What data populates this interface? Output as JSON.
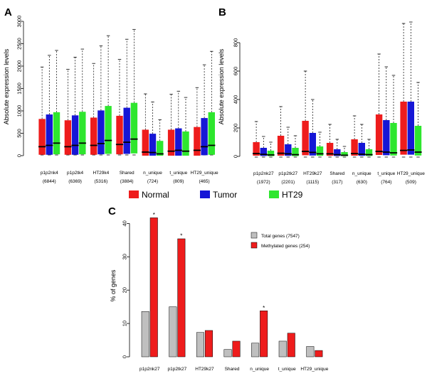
{
  "colors": {
    "normal": "#ee1c1c",
    "tumor": "#1616d6",
    "ht29": "#2ee62e",
    "total": "#bfbfbf",
    "methylated": "#ee1c1c",
    "median": "#000000",
    "whisker": "#000000"
  },
  "legend": {
    "normal": "Normal",
    "tumor": "Tumor",
    "ht29": "HT29"
  },
  "chart_data": [
    {
      "panel": "A",
      "type": "box",
      "ylabel": "Absolute expression levels",
      "ylim": [
        0,
        3000
      ],
      "yticks": [
        0,
        500,
        1000,
        1500,
        2000,
        2500,
        3000
      ],
      "series": [
        "Normal",
        "Tumor",
        "HT29"
      ],
      "categories": [
        {
          "name": "p1p2nk4",
          "count": "(6844)",
          "boxes": [
            {
              "q1": 20,
              "med": 200,
              "q3": 820,
              "hi": 1980
            },
            {
              "q1": 20,
              "med": 230,
              "q3": 920,
              "hi": 2240
            },
            {
              "q1": 30,
              "med": 280,
              "q3": 970,
              "hi": 2350
            }
          ]
        },
        {
          "name": "p1p2tk4",
          "count": "(6369)",
          "boxes": [
            {
              "q1": 20,
              "med": 200,
              "q3": 790,
              "hi": 1930
            },
            {
              "q1": 20,
              "med": 230,
              "q3": 900,
              "hi": 2200
            },
            {
              "q1": 30,
              "med": 280,
              "q3": 980,
              "hi": 2380
            }
          ]
        },
        {
          "name": "HT29k4",
          "count": "(5316)",
          "boxes": [
            {
              "q1": 20,
              "med": 230,
              "q3": 850,
              "hi": 2060
            },
            {
              "q1": 30,
              "med": 270,
              "q3": 1010,
              "hi": 2450
            },
            {
              "q1": 40,
              "med": 340,
              "q3": 1110,
              "hi": 2680
            }
          ]
        },
        {
          "name": "Shared",
          "count": "(3884)",
          "boxes": [
            {
              "q1": 30,
              "med": 250,
              "q3": 890,
              "hi": 2150
            },
            {
              "q1": 40,
              "med": 300,
              "q3": 1070,
              "hi": 2600
            },
            {
              "q1": 50,
              "med": 370,
              "q3": 1180,
              "hi": 2820
            }
          ]
        },
        {
          "name": "n_unique",
          "count": "(724)",
          "boxes": [
            {
              "q1": 0,
              "med": 80,
              "q3": 580,
              "hi": 1380
            },
            {
              "q1": 0,
              "med": 70,
              "q3": 490,
              "hi": 1200
            },
            {
              "q1": 0,
              "med": 40,
              "q3": 330,
              "hi": 800
            }
          ]
        },
        {
          "name": "t_unique",
          "count": "(809)",
          "boxes": [
            {
              "q1": 0,
              "med": 100,
              "q3": 580,
              "hi": 1370
            },
            {
              "q1": 0,
              "med": 120,
              "q3": 610,
              "hi": 1440
            },
            {
              "q1": 0,
              "med": 100,
              "q3": 540,
              "hi": 1300
            }
          ]
        },
        {
          "name": "HT29_unique",
          "count": "(465)",
          "boxes": [
            {
              "q1": 0,
              "med": 120,
              "q3": 640,
              "hi": 1520
            },
            {
              "q1": 10,
              "med": 200,
              "q3": 840,
              "hi": 2030
            },
            {
              "q1": 20,
              "med": 230,
              "q3": 970,
              "hi": 2330
            }
          ]
        }
      ]
    },
    {
      "panel": "B",
      "type": "box",
      "ylabel": "Absolute expression levels",
      "ylim": [
        -10,
        960
      ],
      "yticks": [
        0,
        200,
        400,
        600,
        800
      ],
      "series": [
        "Normal",
        "Tumor",
        "HT29"
      ],
      "categories": [
        {
          "name": "p1p2nk27",
          "count": "(1972)",
          "boxes": [
            {
              "q1": 5,
              "med": 20,
              "q3": 100,
              "hi": 245
            },
            {
              "q1": 3,
              "med": 14,
              "q3": 60,
              "hi": 140
            },
            {
              "q1": 2,
              "med": 10,
              "q3": 40,
              "hi": 100
            }
          ]
        },
        {
          "name": "p1p2tk27",
          "count": "(2201)",
          "boxes": [
            {
              "q1": 5,
              "med": 22,
              "q3": 145,
              "hi": 350
            },
            {
              "q1": 4,
              "med": 18,
              "q3": 85,
              "hi": 205
            },
            {
              "q1": 2,
              "med": 12,
              "q3": 60,
              "hi": 145
            }
          ]
        },
        {
          "name": "HT29k27",
          "count": "(1115)",
          "boxes": [
            {
              "q1": 8,
              "med": 35,
              "q3": 250,
              "hi": 600
            },
            {
              "q1": 6,
              "med": 28,
              "q3": 165,
              "hi": 400
            },
            {
              "q1": 4,
              "med": 18,
              "q3": 70,
              "hi": 170
            }
          ]
        },
        {
          "name": "Shared",
          "count": "(317)",
          "boxes": [
            {
              "q1": 4,
              "med": 18,
              "q3": 95,
              "hi": 225
            },
            {
              "q1": 3,
              "med": 12,
              "q3": 50,
              "hi": 120
            },
            {
              "q1": 2,
              "med": 8,
              "q3": 30,
              "hi": 70
            }
          ]
        },
        {
          "name": "n_unique",
          "count": "(630)",
          "boxes": [
            {
              "q1": 5,
              "med": 20,
              "q3": 120,
              "hi": 285
            },
            {
              "q1": 4,
              "med": 15,
              "q3": 95,
              "hi": 225
            },
            {
              "q1": 3,
              "med": 12,
              "q3": 50,
              "hi": 120
            }
          ]
        },
        {
          "name": "t_unique",
          "count": "(764)",
          "boxes": [
            {
              "q1": 10,
              "med": 35,
              "q3": 295,
              "hi": 720
            },
            {
              "q1": 8,
              "med": 30,
              "q3": 255,
              "hi": 630
            },
            {
              "q1": 6,
              "med": 25,
              "q3": 235,
              "hi": 570
            }
          ]
        },
        {
          "name": "HT29_unique",
          "count": "(509)",
          "boxes": [
            {
              "q1": 12,
              "med": 42,
              "q3": 385,
              "hi": 935
            },
            {
              "q1": 12,
              "med": 45,
              "q3": 385,
              "hi": 945
            },
            {
              "q1": 6,
              "med": 30,
              "q3": 215,
              "hi": 520
            }
          ]
        }
      ]
    },
    {
      "panel": "C",
      "type": "bar",
      "ylabel": "% of genes",
      "ylim": [
        0,
        42
      ],
      "yticks": [
        0,
        10,
        20,
        30,
        40
      ],
      "categories": [
        "p1p2nk27",
        "p1p2tk27",
        "HT29k27",
        "Shared",
        "n_unique",
        "t_unique",
        "HT29_unique"
      ],
      "series": [
        {
          "name": "Total genes (7547)",
          "values": [
            13.6,
            15.0,
            7.3,
            2.2,
            4.1,
            4.7,
            3.1
          ]
        },
        {
          "name": "Methylated genes (254)",
          "values": [
            41.7,
            35.4,
            7.9,
            4.7,
            13.8,
            7.1,
            1.9
          ]
        }
      ],
      "significance": [
        "*",
        "*",
        "",
        "",
        "*",
        "",
        ""
      ]
    }
  ]
}
